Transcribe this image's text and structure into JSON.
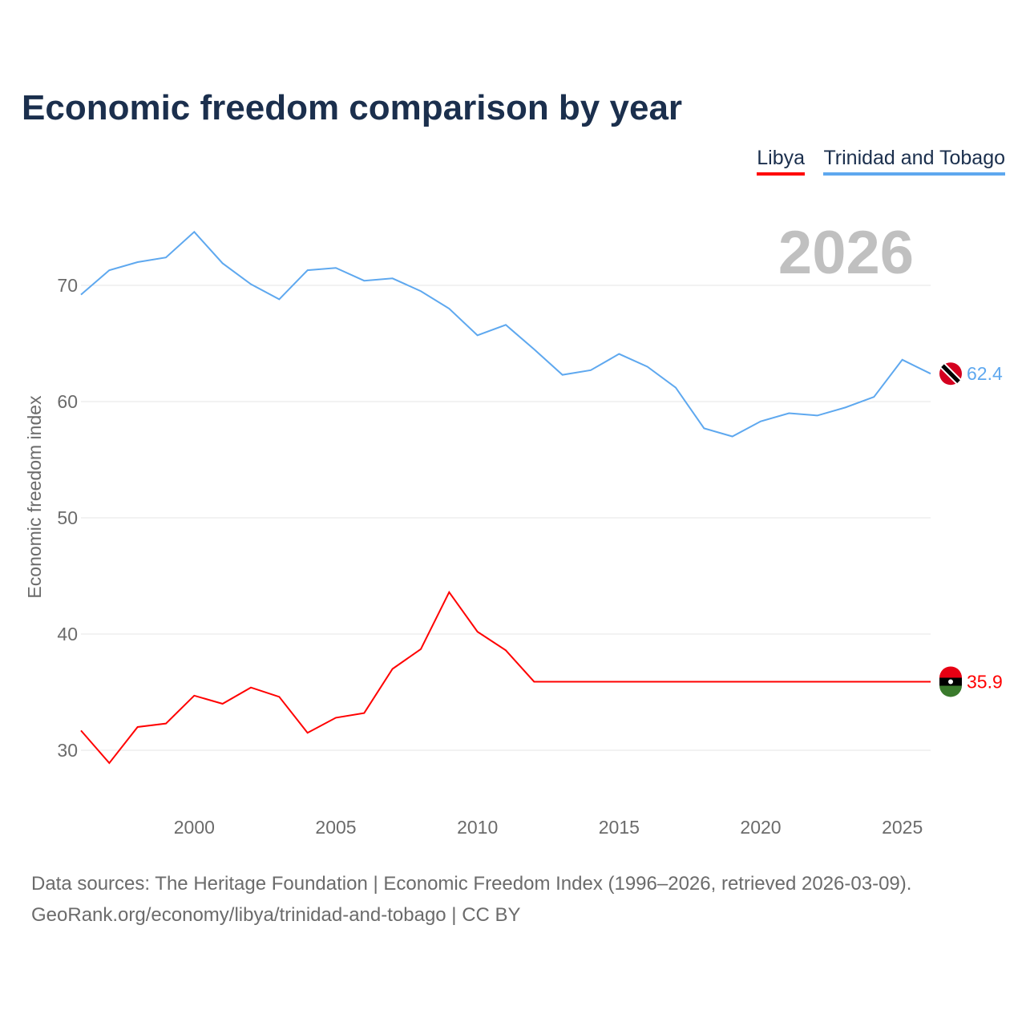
{
  "chart_data": {
    "type": "line",
    "title": "Economic freedom comparison by year",
    "xlabel": "",
    "ylabel": "Economic freedom index",
    "highlight_year": "2026",
    "x": [
      1996,
      1997,
      1998,
      1999,
      2000,
      2001,
      2002,
      2003,
      2004,
      2005,
      2006,
      2007,
      2008,
      2009,
      2010,
      2011,
      2012,
      2013,
      2014,
      2015,
      2016,
      2017,
      2018,
      2019,
      2020,
      2021,
      2022,
      2023,
      2024,
      2025,
      2026
    ],
    "xlim": [
      1996,
      2026
    ],
    "ylim": [
      25,
      77
    ],
    "xticks": [
      2000,
      2005,
      2010,
      2015,
      2020,
      2025
    ],
    "yticks": [
      30,
      40,
      50,
      60,
      70
    ],
    "grid": true,
    "legend_position": "top-right",
    "series": [
      {
        "name": "Libya",
        "color": "#ff0000",
        "end_label": "35.9",
        "values": [
          31.7,
          28.9,
          32.0,
          32.3,
          34.7,
          34.0,
          35.4,
          34.6,
          31.5,
          32.8,
          33.2,
          37.0,
          38.7,
          43.6,
          40.2,
          38.6,
          35.9,
          35.9,
          35.9,
          35.9,
          35.9,
          35.9,
          35.9,
          35.9,
          35.9,
          35.9,
          35.9,
          35.9,
          35.9,
          35.9,
          35.9
        ]
      },
      {
        "name": "Trinidad and Tobago",
        "color": "#5ea8ef",
        "end_label": "62.4",
        "values": [
          69.2,
          71.3,
          72.0,
          72.4,
          74.6,
          71.9,
          70.1,
          68.8,
          71.3,
          71.5,
          70.4,
          70.6,
          69.5,
          68.0,
          65.7,
          66.6,
          64.5,
          62.3,
          62.7,
          64.1,
          63.0,
          61.2,
          57.7,
          57.0,
          58.3,
          59.0,
          58.8,
          59.5,
          60.4,
          63.6,
          62.4
        ]
      }
    ]
  },
  "footer": {
    "line1": "Data sources: The Heritage Foundation | Economic Freedom Index (1996–2026, retrieved 2026-03-09).",
    "line2": "GeoRank.org/economy/libya/trinidad-and-tobago | CC BY"
  }
}
